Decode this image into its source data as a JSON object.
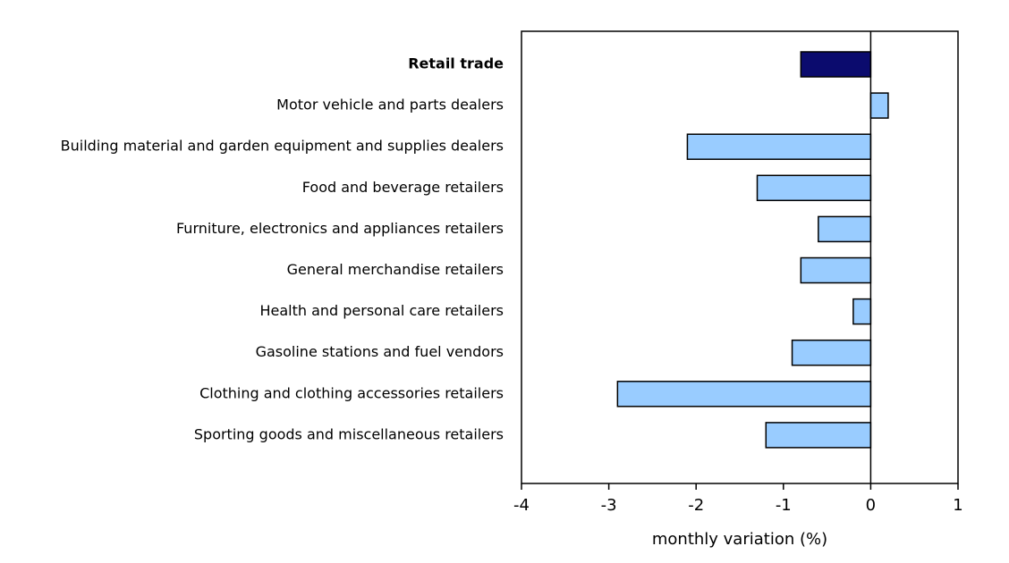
{
  "chart_data": {
    "type": "barh",
    "x_label": "monthly variation (%)",
    "categories": [
      "Retail trade",
      "Motor vehicle and parts dealers",
      "Building material and garden equipment and supplies dealers",
      "Food and beverage retailers",
      "Furniture, electronics and appliances retailers",
      "General merchandise retailers",
      "Health and personal care retailers",
      "Gasoline stations and fuel vendors",
      "Clothing and clothing accessories retailers",
      "Sporting goods and miscellaneous retailers"
    ],
    "values": [
      -0.8,
      0.2,
      -2.1,
      -1.3,
      -0.6,
      -0.8,
      -0.2,
      -0.9,
      -2.9,
      -1.2
    ],
    "colors": [
      "#0b0b6e",
      "#99ccff",
      "#99ccff",
      "#99ccff",
      "#99ccff",
      "#99ccff",
      "#99ccff",
      "#99ccff",
      "#99ccff",
      "#99ccff"
    ],
    "xlim": [
      -4,
      1
    ],
    "xticks": [
      -4,
      -3,
      -2,
      -1,
      0,
      1
    ]
  }
}
